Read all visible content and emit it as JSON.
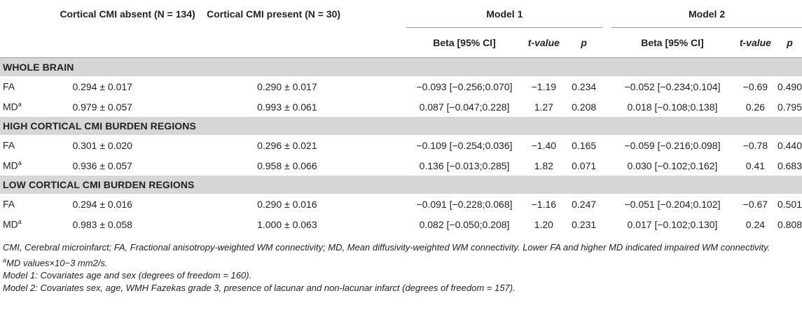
{
  "header": {
    "absent": "Cortical CMI absent (N = 134)",
    "present": "Cortical CMI present (N = 30)",
    "model1": "Model 1",
    "model2": "Model 2",
    "beta": "Beta [95% CI]",
    "t": "t-value",
    "p": "p"
  },
  "sections": [
    {
      "title": "WHOLE BRAIN",
      "rows": [
        {
          "label": "FA",
          "sup": "",
          "absent": "0.294 ± 0.017",
          "present": "0.290 ± 0.017",
          "b1": "−0.093 [−0.256;0.070]",
          "t1": "−1.19",
          "p1": "0.234",
          "b2": "−0.052 [−0.234;0.104]",
          "t2": "−0.69",
          "p2": "0.490"
        },
        {
          "label": "MD",
          "sup": "a",
          "absent": "0.979 ± 0.057",
          "present": "0.993 ± 0.061",
          "b1": "0.087 [−0.047;0.228]",
          "t1": "1.27",
          "p1": "0.208",
          "b2": "0.018 [−0.108;0.138]",
          "t2": "0.26",
          "p2": "0.795"
        }
      ]
    },
    {
      "title": "HIGH CORTICAL CMI BURDEN REGIONS",
      "rows": [
        {
          "label": "FA",
          "sup": "",
          "absent": "0.301 ± 0.020",
          "present": "0.296 ± 0.021",
          "b1": "−0.109 [−0.254;0.036]",
          "t1": "−1.40",
          "p1": "0.165",
          "b2": "−0.059 [−0.216;0.098]",
          "t2": "−0.78",
          "p2": "0.440"
        },
        {
          "label": "MD",
          "sup": "a",
          "absent": "0.936 ± 0.057",
          "present": "0.958 ± 0.066",
          "b1": "0.136 [−0.013;0.285]",
          "t1": "1.82",
          "p1": "0.071",
          "b2": "0.030 [−0.102;0.162]",
          "t2": "0.41",
          "p2": "0.683"
        }
      ]
    },
    {
      "title": "LOW CORTICAL CMI BURDEN REGIONS",
      "rows": [
        {
          "label": "FA",
          "sup": "",
          "absent": "0.294 ± 0.016",
          "present": "0.290 ± 0.016",
          "b1": "−0.091 [−0.228;0.068]",
          "t1": "−1.16",
          "p1": "0.247",
          "b2": "−0.051 [−0.204;0.102]",
          "t2": "−0.67",
          "p2": "0.501"
        },
        {
          "label": "MD",
          "sup": "a",
          "absent": "0.983 ± 0.058",
          "present": "1.000 ± 0.063",
          "b1": "0.082 [−0.050;0.208]",
          "t1": "1.20",
          "p1": "0.231",
          "b2": "0.017 [−0.102;0.130]",
          "t2": "0.24",
          "p2": "0.808"
        }
      ]
    }
  ],
  "notes": {
    "line1": "CMI, Cerebral microinfarct; FA, Fractional anisotropy-weighted WM connectivity; MD, Mean diffusivity-weighted WM connectivity. Lower FA and higher MD indicated impaired WM connectivity.",
    "line2_sup": "a",
    "line2": "MD values×10−3 mm2/s.",
    "line3": "Model 1: Covariates age and sex (degrees of freedom = 160).",
    "line4": "Model 2: Covariates sex, age, WMH Fazekas grade 3, presence of lacunar and non-lacunar infarct (degrees of freedom = 157)."
  }
}
